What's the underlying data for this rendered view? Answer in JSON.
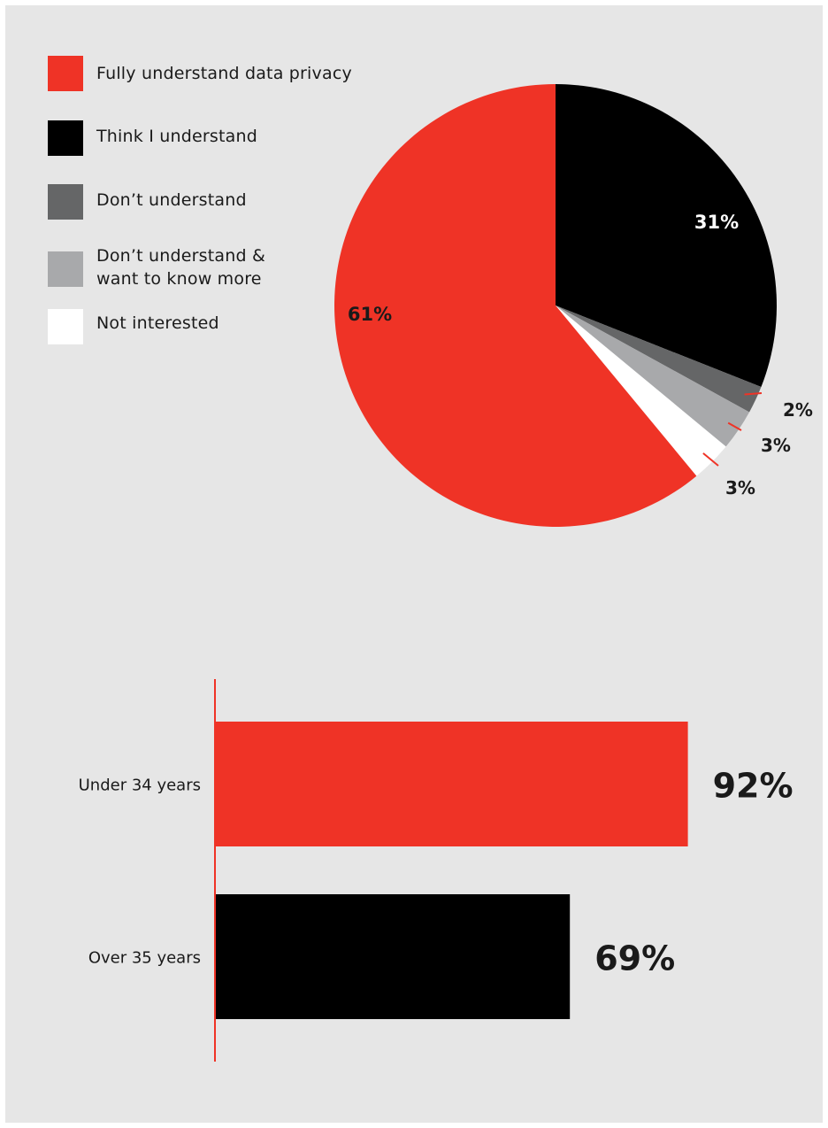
{
  "colors": {
    "background": "#e6e6e6",
    "red": "#ef3326",
    "black": "#000000",
    "dark_grey": "#656667",
    "light_grey": "#a8a9ab",
    "white": "#ffffff"
  },
  "chart_data": [
    {
      "type": "pie",
      "slices": [
        {
          "label": "Fully understand data privacy",
          "value": 61,
          "value_label": "61%",
          "color": "#ef3326"
        },
        {
          "label": "Think I understand",
          "value": 31,
          "value_label": "31%",
          "color": "#000000"
        },
        {
          "label": "Don’t understand",
          "value": 2,
          "value_label": "2%",
          "color": "#656667"
        },
        {
          "label": "Don’t understand &\nwant to know more",
          "value": 3,
          "value_label": "3%",
          "color": "#a8a9ab"
        },
        {
          "label": "Not interested",
          "value": 3,
          "value_label": "3%",
          "color": "#ffffff"
        }
      ],
      "legend": "top-left"
    },
    {
      "type": "bar",
      "orientation": "horizontal",
      "categories": [
        "Under 34 years",
        "Over 35 years"
      ],
      "values": [
        92,
        69
      ],
      "value_labels": [
        "92%",
        "69%"
      ],
      "colors": [
        "#ef3326",
        "#000000"
      ]
    }
  ]
}
